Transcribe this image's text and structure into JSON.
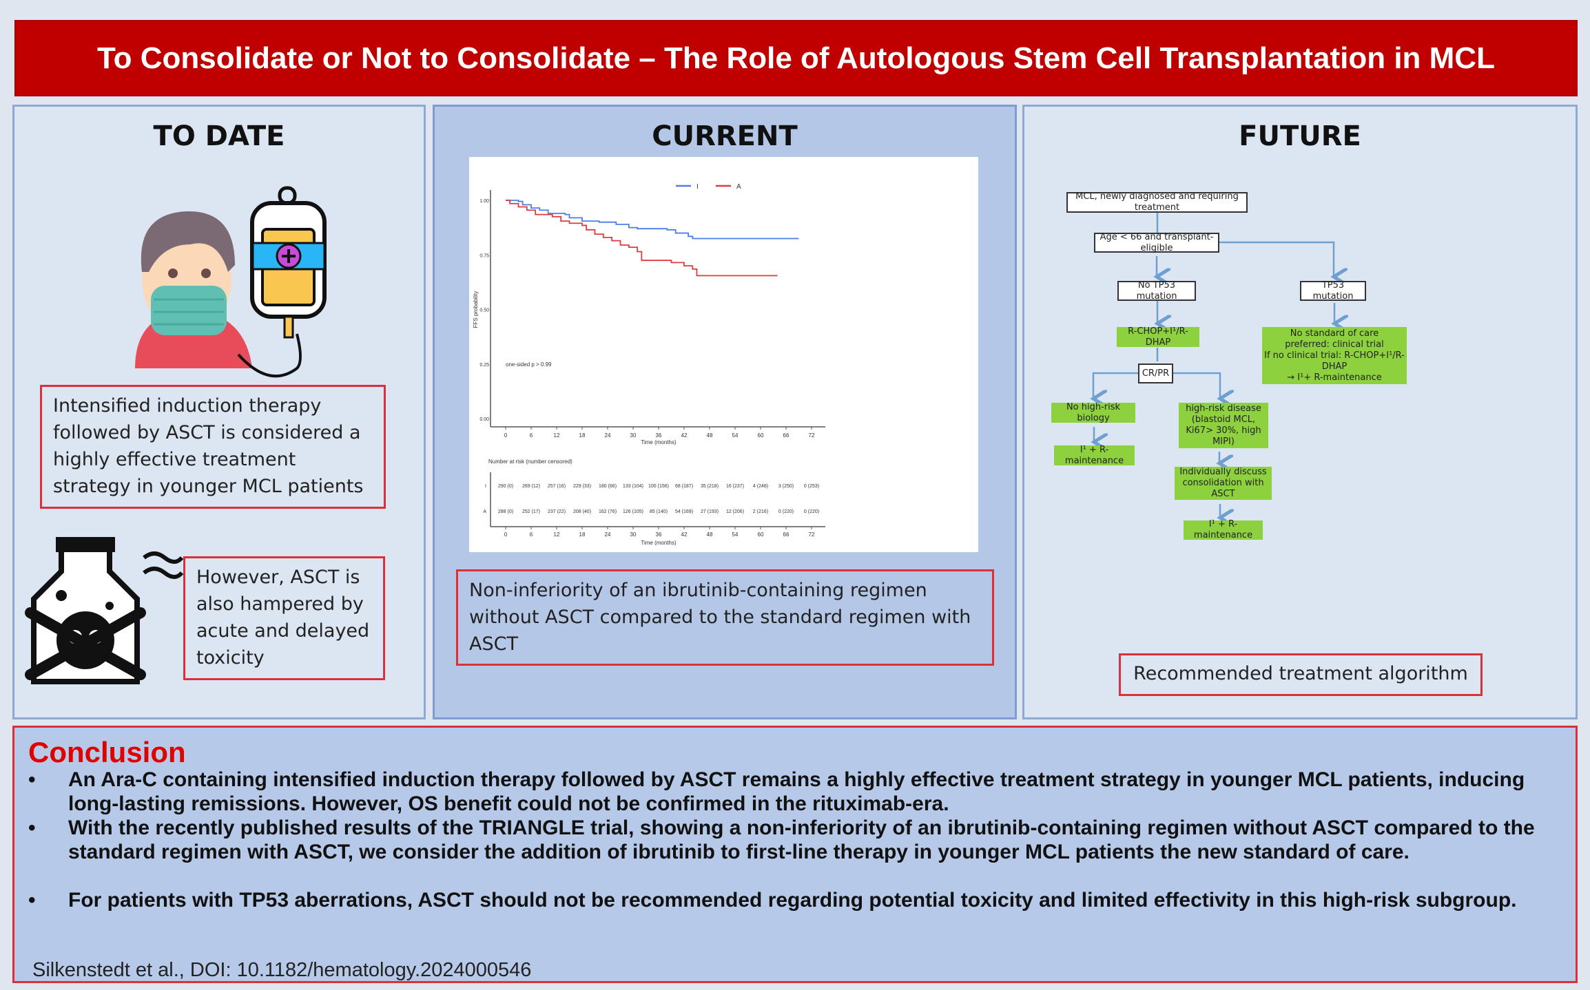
{
  "title": "To Consolidate or Not to Consolidate – The Role of Autologous Stem Cell Transplantation in MCL",
  "panels": {
    "to_date": {
      "title": "TO DATE",
      "box1": "Intensified induction therapy followed by ASCT is considered a highly effective treatment strategy in younger MCL patients",
      "box2": "However, ASCT is also hampered by acute and delayed toxicity",
      "icons": [
        "masked-patient-icon",
        "iv-bag-icon",
        "poison-bottle-icon"
      ]
    },
    "current": {
      "title": "CURRENT",
      "box": "Non-inferiority of an ibrutinib-containing regimen without ASCT compared to the standard regimen with ASCT"
    },
    "future": {
      "title": "FUTURE",
      "caption": "Recommended treatment algorithm",
      "flow": {
        "n1": "MCL, newly diagnosed and requiring treatment",
        "n2": "Age < 66 and transplant-eligible",
        "n3": "No TP53 mutation",
        "n4": "TP53 mutation",
        "n5": "R-CHOP+I¹/R-DHAP",
        "n6": [
          "No standard of care",
          "preferred: clinical trial",
          "If no clinical trial: R-CHOP+I¹/R-DHAP",
          "→ I¹+ R-maintenance"
        ],
        "n7": "CR/PR",
        "n8": "No high-risk biology",
        "n9": "I¹ + R-maintenance",
        "n10": [
          "high-risk disease",
          "(blastoid MCL,",
          "Ki67> 30%, high MIPI)"
        ],
        "n11": [
          "Individually discuss",
          "consolidation with ASCT"
        ],
        "n12": "I¹ + R-maintenance"
      }
    }
  },
  "chart_data": {
    "type": "line",
    "title": "",
    "xlabel": "Time (months)",
    "ylabel": "FFS probability",
    "xlim": [
      0,
      72
    ],
    "ylim": [
      0,
      1
    ],
    "xticks": [
      0,
      6,
      12,
      18,
      24,
      30,
      36,
      42,
      48,
      54,
      60,
      66,
      72
    ],
    "yticks": [
      "0.00",
      "0.25",
      "0.50",
      "0.75",
      "1.00"
    ],
    "legend_position": "top",
    "annotation": "one-sided p > 0.99",
    "series": [
      {
        "name": "I",
        "color": "#4a7ee8",
        "points": [
          [
            0,
            1
          ],
          [
            3,
            0.995
          ],
          [
            4,
            0.98
          ],
          [
            6,
            0.965
          ],
          [
            8,
            0.955
          ],
          [
            10,
            0.94
          ],
          [
            14,
            0.935
          ],
          [
            15,
            0.92
          ],
          [
            18,
            0.905
          ],
          [
            22,
            0.9
          ],
          [
            26,
            0.89
          ],
          [
            29,
            0.875
          ],
          [
            31,
            0.87
          ],
          [
            38,
            0.865
          ],
          [
            40,
            0.85
          ],
          [
            43,
            0.835
          ],
          [
            44,
            0.825
          ],
          [
            69,
            0.825
          ]
        ]
      },
      {
        "name": "A",
        "color": "#e0393e",
        "points": [
          [
            0,
            1
          ],
          [
            1,
            0.985
          ],
          [
            3,
            0.97
          ],
          [
            5,
            0.955
          ],
          [
            7,
            0.935
          ],
          [
            11,
            0.925
          ],
          [
            13,
            0.905
          ],
          [
            15,
            0.895
          ],
          [
            18,
            0.885
          ],
          [
            19,
            0.865
          ],
          [
            21,
            0.845
          ],
          [
            23,
            0.83
          ],
          [
            25,
            0.815
          ],
          [
            27,
            0.795
          ],
          [
            29,
            0.785
          ],
          [
            31,
            0.765
          ],
          [
            32,
            0.725
          ],
          [
            39,
            0.715
          ],
          [
            42,
            0.7
          ],
          [
            44,
            0.685
          ],
          [
            45,
            0.655
          ],
          [
            64,
            0.655
          ]
        ]
      }
    ],
    "risk_table": {
      "title": "Number at risk (number censored)",
      "rows": [
        {
          "name": "I",
          "values": [
            "290 (0)",
            "269 (12)",
            "257 (16)",
            "229 (33)",
            "180 (66)",
            "133 (104)",
            "100 (156)",
            "68 (187)",
            "35 (218)",
            "16 (237)",
            "4 (248)",
            "3 (250)",
            "0 (253)"
          ]
        },
        {
          "name": "A",
          "values": [
            "288 (0)",
            "252 (17)",
            "237 (22)",
            "208 (40)",
            "162 (76)",
            "126 (105)",
            "85 (140)",
            "54 (169)",
            "27 (193)",
            "12 (206)",
            "2 (216)",
            "0 (220)",
            "0 (220)"
          ]
        }
      ]
    }
  },
  "conclusion": {
    "title": "Conclusion",
    "bullets": [
      "An Ara-C containing intensified induction therapy followed by ASCT remains a highly effective treatment strategy in younger MCL patients, inducing long-lasting remissions. However, OS benefit could not be confirmed in the rituximab-era.",
      "With the recently published results of the TRIANGLE trial, showing a non-inferiority of an ibrutinib-containing regimen without ASCT compared to the standard regimen with ASCT, we consider the addition of ibrutinib to first-line therapy in younger MCL patients the new standard of care.",
      "For patients with TP53 aberrations, ASCT should not be recommended regarding potential toxicity and limited effectivity in this high-risk subgroup."
    ],
    "bullet_char": "•",
    "citation": "Silkenstedt et al., DOI: 10.1182/hematology.2024000546"
  }
}
